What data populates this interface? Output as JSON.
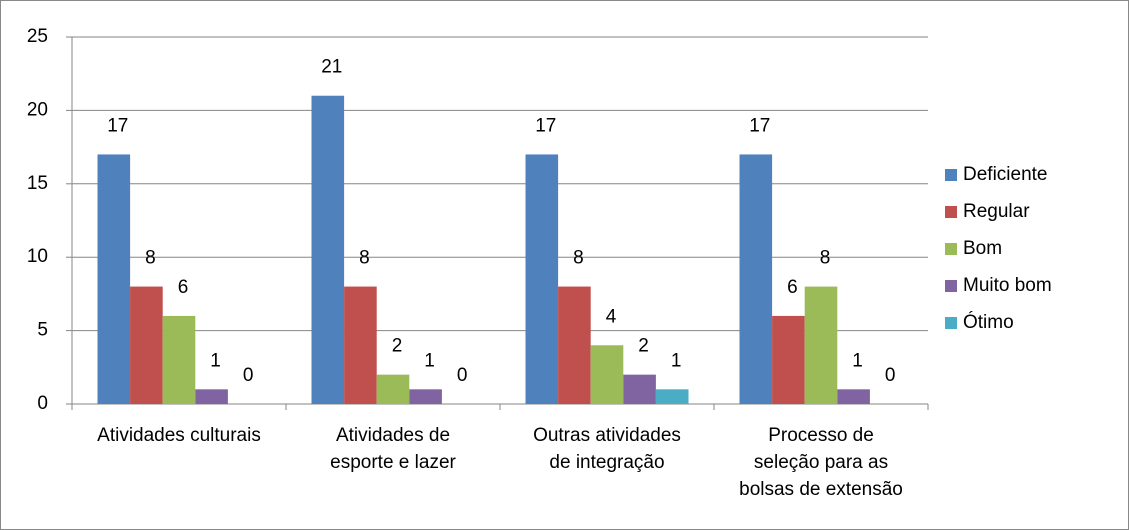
{
  "chart_data": {
    "type": "bar",
    "categories": [
      "Atividades culturais",
      "Atividades de esporte e lazer",
      "Outras atividades de integração",
      "Processo de seleção para as bolsas de extensão"
    ],
    "series": [
      {
        "name": "Deficiente",
        "color": "#4f81bd",
        "values": [
          17,
          21,
          17,
          17
        ]
      },
      {
        "name": "Regular",
        "color": "#c0504d",
        "values": [
          8,
          8,
          8,
          6
        ]
      },
      {
        "name": "Bom",
        "color": "#9bbb59",
        "values": [
          6,
          2,
          4,
          8
        ]
      },
      {
        "name": "Muito bom",
        "color": "#8064a2",
        "values": [
          1,
          1,
          2,
          1
        ]
      },
      {
        "name": "Ótimo",
        "color": "#4bacc6",
        "values": [
          0,
          0,
          1,
          0
        ]
      }
    ],
    "ylim": [
      0,
      25
    ],
    "yticks": [
      0,
      5,
      10,
      15,
      20,
      25
    ],
    "grid": true,
    "legend": "right"
  }
}
